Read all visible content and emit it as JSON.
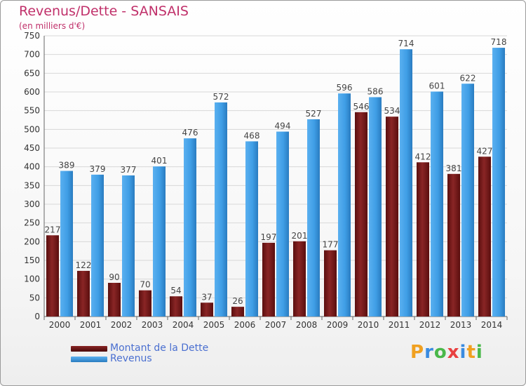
{
  "header": {
    "title": "Revenus/Dette - SANSAIS",
    "subtitle": "(en milliers d'€)"
  },
  "legend": {
    "debt_label": "Montant de la Dette",
    "revenue_label": "Revenus"
  },
  "logo": {
    "text": "Proxiti",
    "letters": [
      "P",
      "r",
      "o",
      "x",
      "i",
      "t",
      "i"
    ],
    "colors": [
      "#f0a020",
      "#3a8be0",
      "#4ab84a",
      "#e84040",
      "#3a8be0",
      "#f0a020",
      "#4ab84a"
    ]
  },
  "colors": {
    "debt": "#7a1a1a",
    "revenue": "#3f9ee6",
    "title": "#c0306a",
    "legend_text": "#4a6fd0"
  },
  "chart_data": {
    "type": "bar",
    "title": "Revenus/Dette - SANSAIS",
    "subtitle": "(en milliers d'€)",
    "categories": [
      "2000",
      "2001",
      "2002",
      "2003",
      "2004",
      "2005",
      "2006",
      "2007",
      "2008",
      "2009",
      "2010",
      "2011",
      "2012",
      "2013",
      "2014"
    ],
    "series": [
      {
        "name": "Montant de la Dette",
        "values": [
          217,
          122,
          90,
          70,
          54,
          37,
          26,
          197,
          201,
          177,
          546,
          534,
          412,
          381,
          427
        ]
      },
      {
        "name": "Revenus",
        "values": [
          389,
          379,
          377,
          401,
          476,
          572,
          468,
          494,
          527,
          596,
          586,
          714,
          601,
          622,
          718
        ]
      }
    ],
    "ylim": [
      0,
      750
    ],
    "yticks": [
      0,
      50,
      100,
      150,
      200,
      250,
      300,
      350,
      400,
      450,
      500,
      550,
      600,
      650,
      700,
      750
    ],
    "grid": true,
    "legend_position": "bottom-left"
  }
}
